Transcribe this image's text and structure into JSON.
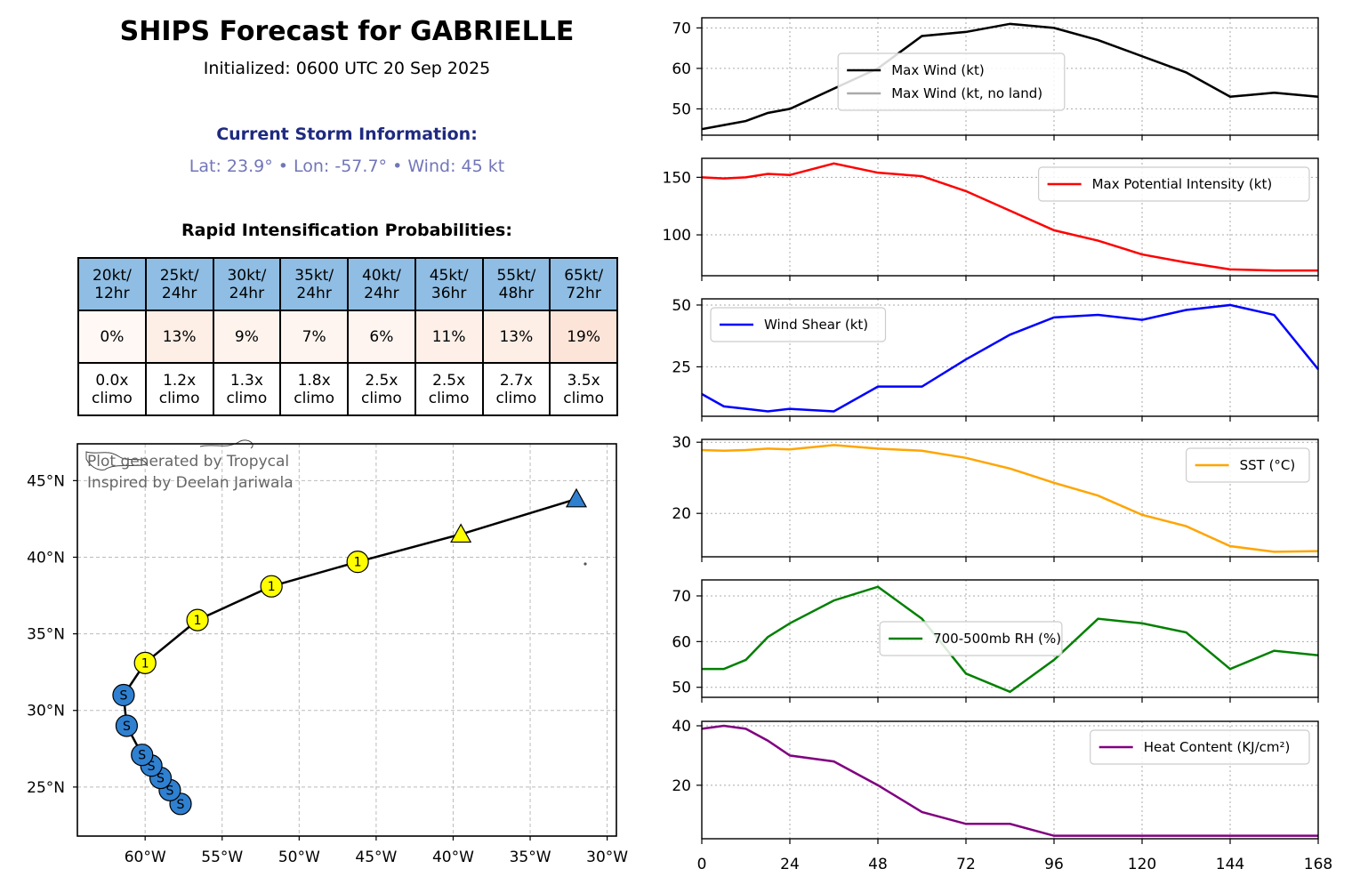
{
  "header": {
    "title": "SHIPS Forecast for GABRIELLE",
    "initialized": "Initialized: 0600 UTC 20 Sep 2025",
    "current_heading": "Current Storm Information:",
    "current_info": "Lat: 23.9° • Lon: -57.7° • Wind: 45 kt"
  },
  "ri": {
    "heading": "Rapid Intensification Probabilities:",
    "columns": [
      {
        "line1": "20kt/",
        "line2": "12hr",
        "prob": "0%",
        "climo1": "0.0x",
        "climo2": "climo",
        "bg": "#fff8f5"
      },
      {
        "line1": "25kt/",
        "line2": "24hr",
        "prob": "13%",
        "climo1": "1.2x",
        "climo2": "climo",
        "bg": "#fdeee6"
      },
      {
        "line1": "30kt/",
        "line2": "24hr",
        "prob": "9%",
        "climo1": "1.3x",
        "climo2": "climo",
        "bg": "#fef3ed"
      },
      {
        "line1": "35kt/",
        "line2": "24hr",
        "prob": "7%",
        "climo1": "1.8x",
        "climo2": "climo",
        "bg": "#fef5f0"
      },
      {
        "line1": "40kt/",
        "line2": "24hr",
        "prob": "6%",
        "climo1": "2.5x",
        "climo2": "climo",
        "bg": "#fef5f1"
      },
      {
        "line1": "45kt/",
        "line2": "36hr",
        "prob": "11%",
        "climo1": "2.5x",
        "climo2": "climo",
        "bg": "#fef0e9"
      },
      {
        "line1": "55kt/",
        "line2": "48hr",
        "prob": "13%",
        "climo1": "2.7x",
        "climo2": "climo",
        "bg": "#fdeee6"
      },
      {
        "line1": "65kt/",
        "line2": "72hr",
        "prob": "19%",
        "climo1": "3.5x",
        "climo2": "climo",
        "bg": "#fde4d8"
      }
    ]
  },
  "map": {
    "credit1": "Plot generated by Tropycal",
    "credit2": "Inspired by Deelan Jariwala",
    "lon_labels": [
      "60°W",
      "55°W",
      "50°W",
      "45°W",
      "40°W",
      "35°W",
      "30°W"
    ],
    "lon_values": [
      -60,
      -55,
      -50,
      -45,
      -40,
      -35,
      -30
    ],
    "lat_labels": [
      "25°N",
      "30°N",
      "35°N",
      "40°N",
      "45°N"
    ],
    "lat_values": [
      25,
      30,
      35,
      40,
      45
    ],
    "lon_range": [
      -64.4,
      -29.4
    ],
    "lat_range": [
      21.8,
      47.4
    ],
    "track": [
      {
        "lon": -57.7,
        "lat": 23.9,
        "cat": "S"
      },
      {
        "lon": -58.4,
        "lat": 24.8,
        "cat": "S"
      },
      {
        "lon": -59.0,
        "lat": 25.6,
        "cat": "S"
      },
      {
        "lon": -59.6,
        "lat": 26.4,
        "cat": "S"
      },
      {
        "lon": -60.2,
        "lat": 27.1,
        "cat": "S"
      },
      {
        "lon": -61.2,
        "lat": 29.0,
        "cat": "S"
      },
      {
        "lon": -61.4,
        "lat": 31.0,
        "cat": "S"
      },
      {
        "lon": -60.0,
        "lat": 33.1,
        "cat": "1"
      },
      {
        "lon": -56.6,
        "lat": 35.9,
        "cat": "1"
      },
      {
        "lon": -51.8,
        "lat": 38.1,
        "cat": "1"
      },
      {
        "lon": -46.2,
        "lat": 39.7,
        "cat": "1"
      },
      {
        "lon": -39.5,
        "lat": 41.5,
        "cat": "tri-yellow"
      },
      {
        "lon": -32.0,
        "lat": 43.8,
        "cat": "tri-blue"
      }
    ],
    "colors": {
      "ts": "#2f80d0",
      "cat1": "#ffff00",
      "track": "#000000"
    }
  },
  "chart_data": [
    {
      "type": "line",
      "x": [
        0,
        6,
        12,
        18,
        24,
        36,
        48,
        60,
        72,
        84,
        96,
        108,
        120,
        132,
        144,
        156,
        168
      ],
      "series": [
        {
          "name": "Max Wind (kt)",
          "color": "#000000",
          "values": [
            45,
            46,
            47,
            49,
            50,
            55,
            60,
            68,
            69,
            71,
            70,
            67,
            63,
            59,
            53,
            54,
            53
          ]
        },
        {
          "name": "Max Wind (kt, no land)",
          "color": "#aaaaaa",
          "values": [
            45,
            46,
            47,
            49,
            50,
            55,
            60,
            68,
            69,
            71,
            70,
            67,
            63,
            59,
            53,
            54,
            53
          ]
        }
      ],
      "ylim": [
        43.5,
        72.5
      ],
      "yticks": [
        50,
        60,
        70
      ],
      "legend": "center",
      "grid": true
    },
    {
      "type": "line",
      "x": [
        0,
        6,
        12,
        18,
        24,
        36,
        48,
        60,
        72,
        84,
        96,
        108,
        120,
        132,
        144,
        156,
        168
      ],
      "series": [
        {
          "name": "Max Potential Intensity (kt)",
          "color": "#ff0000",
          "values": [
            150,
            149,
            150,
            153,
            152,
            162,
            154,
            151,
            138,
            121,
            104,
            95,
            83,
            76,
            70,
            69,
            69
          ]
        }
      ],
      "ylim": [
        64.5,
        166.5
      ],
      "yticks": [
        100,
        150
      ],
      "legend": "top-right",
      "grid": true
    },
    {
      "type": "line",
      "x": [
        0,
        6,
        12,
        18,
        24,
        36,
        48,
        60,
        72,
        84,
        96,
        108,
        120,
        132,
        144,
        156,
        168
      ],
      "series": [
        {
          "name": "Wind Shear (kt)",
          "color": "#0000ff",
          "values": [
            14,
            9,
            8,
            7,
            8,
            7,
            17,
            17,
            28,
            38,
            45,
            46,
            44,
            48,
            50,
            46,
            24
          ]
        }
      ],
      "ylim": [
        5,
        52.5
      ],
      "yticks": [
        25,
        50
      ],
      "legend": "top-left",
      "grid": true
    },
    {
      "type": "line",
      "x": [
        0,
        6,
        12,
        18,
        24,
        36,
        48,
        60,
        72,
        84,
        96,
        108,
        120,
        132,
        144,
        156,
        168
      ],
      "series": [
        {
          "name": "SST (°C)",
          "color": "#ffa500",
          "values": [
            28.9,
            28.8,
            28.9,
            29.1,
            29.0,
            29.6,
            29.1,
            28.8,
            27.8,
            26.3,
            24.3,
            22.5,
            19.8,
            18.2,
            15.4,
            14.6,
            14.7
          ]
        }
      ],
      "ylim": [
        13.9,
        30.4
      ],
      "yticks": [
        20,
        30
      ],
      "legend": "top-right",
      "grid": true
    },
    {
      "type": "line",
      "x": [
        0,
        6,
        12,
        18,
        24,
        36,
        48,
        60,
        72,
        84,
        96,
        108,
        120,
        132,
        144,
        156,
        168
      ],
      "series": [
        {
          "name": "700-500mb RH (%)",
          "color": "#008000",
          "values": [
            54,
            54,
            56,
            61,
            64,
            69,
            72,
            65,
            53,
            49,
            56,
            65,
            64,
            62,
            54,
            58,
            57
          ]
        }
      ],
      "ylim": [
        47.8,
        73.5
      ],
      "yticks": [
        50,
        60,
        70
      ],
      "legend": "center",
      "grid": true
    },
    {
      "type": "line",
      "x": [
        0,
        6,
        12,
        18,
        24,
        36,
        48,
        60,
        72,
        84,
        96,
        108,
        120,
        132,
        144,
        156,
        168
      ],
      "series": [
        {
          "name": "Heat Content (KJ/cm²)",
          "color": "#800080",
          "values": [
            39,
            40,
            39,
            35,
            30,
            28,
            20,
            11,
            7,
            7,
            3,
            3,
            3,
            3,
            3,
            3,
            3
          ]
        }
      ],
      "ylim": [
        2,
        41.5
      ],
      "yticks": [
        20,
        40
      ],
      "legend": "top-right",
      "grid": true,
      "xticks": [
        0,
        24,
        48,
        72,
        96,
        120,
        144,
        168
      ]
    }
  ]
}
